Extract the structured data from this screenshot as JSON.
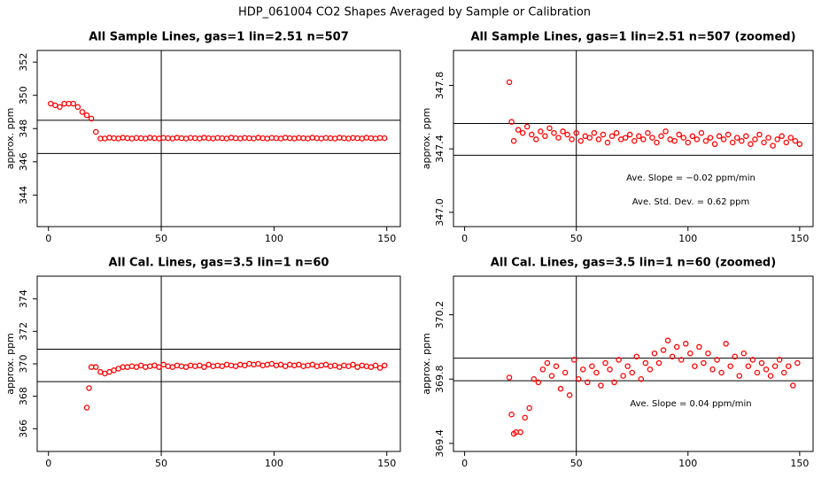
{
  "title": "HDP_061004  CO2 Shapes Averaged by Sample or Calibration",
  "chart_data": [
    {
      "type": "scatter",
      "title": "All Sample Lines, gas=1 lin=2.51 n=507",
      "ylabel": "approx. ppm",
      "color": "#ff0000",
      "xlim": [
        -5,
        156
      ],
      "ylim": [
        342.1,
        352.7
      ],
      "xticks": [
        0,
        50,
        100,
        150
      ],
      "yticks": [
        344,
        346,
        348,
        350,
        352
      ],
      "hlines": [
        348.5,
        346.5
      ],
      "vlines": [
        50
      ],
      "x": [
        1,
        3,
        5,
        7,
        9,
        11,
        13,
        15,
        17,
        19,
        21,
        23,
        25,
        27,
        29,
        31,
        33,
        35,
        37,
        39,
        41,
        43,
        45,
        47,
        49,
        51,
        53,
        55,
        57,
        59,
        61,
        63,
        65,
        67,
        69,
        71,
        73,
        75,
        77,
        79,
        81,
        83,
        85,
        87,
        89,
        91,
        93,
        95,
        97,
        99,
        101,
        103,
        105,
        107,
        109,
        111,
        113,
        115,
        117,
        119,
        121,
        123,
        125,
        127,
        129,
        131,
        133,
        135,
        137,
        139,
        141,
        143,
        145,
        147,
        149
      ],
      "values": [
        349.5,
        349.4,
        349.3,
        349.5,
        349.5,
        349.5,
        349.3,
        349.0,
        348.8,
        348.6,
        347.8,
        347.4,
        347.4,
        347.45,
        347.42,
        347.4,
        347.45,
        347.42,
        347.4,
        347.44,
        347.42,
        347.4,
        347.45,
        347.42,
        347.4,
        347.44,
        347.42,
        347.4,
        347.45,
        347.42,
        347.4,
        347.44,
        347.42,
        347.4,
        347.45,
        347.42,
        347.4,
        347.44,
        347.42,
        347.4,
        347.45,
        347.42,
        347.4,
        347.44,
        347.42,
        347.4,
        347.45,
        347.42,
        347.4,
        347.44,
        347.42,
        347.4,
        347.45,
        347.42,
        347.4,
        347.44,
        347.42,
        347.4,
        347.45,
        347.42,
        347.4,
        347.44,
        347.42,
        347.4,
        347.45,
        347.42,
        347.4,
        347.44,
        347.42,
        347.4,
        347.45,
        347.42,
        347.4,
        347.44,
        347.42
      ]
    },
    {
      "type": "scatter",
      "title": "All Sample Lines, gas=1 lin=2.51 n=507 (zoomed)",
      "ylabel": "approx. ppm",
      "color": "#ff0000",
      "xlim": [
        -5,
        156
      ],
      "ylim": [
        346.91,
        348.02
      ],
      "xticks": [
        0,
        50,
        100,
        150
      ],
      "yticks": [
        {
          "value": 347,
          "label": "347.0"
        },
        347.4,
        347.8
      ],
      "hlines": [
        347.56,
        347.36
      ],
      "vlines": [
        50
      ],
      "annotations": [
        "Ave. Slope = −0.02  ppm/min",
        "Ave. Std. Dev. = 0.62  ppm"
      ],
      "x": [
        20,
        21,
        22,
        24,
        26,
        28,
        30,
        32,
        34,
        36,
        38,
        40,
        42,
        44,
        46,
        48,
        50,
        52,
        54,
        56,
        58,
        60,
        62,
        64,
        66,
        68,
        70,
        72,
        74,
        76,
        78,
        80,
        82,
        84,
        86,
        88,
        90,
        92,
        94,
        96,
        98,
        100,
        102,
        104,
        106,
        108,
        110,
        112,
        114,
        116,
        118,
        120,
        122,
        124,
        126,
        128,
        130,
        132,
        134,
        136,
        138,
        140,
        142,
        144,
        146,
        148,
        150
      ],
      "values": [
        347.82,
        347.57,
        347.45,
        347.52,
        347.5,
        347.54,
        347.49,
        347.46,
        347.51,
        347.48,
        347.53,
        347.5,
        347.47,
        347.51,
        347.49,
        347.46,
        347.5,
        347.45,
        347.48,
        347.47,
        347.5,
        347.46,
        347.49,
        347.44,
        347.48,
        347.5,
        347.46,
        347.47,
        347.49,
        347.45,
        347.48,
        347.46,
        347.5,
        347.47,
        347.44,
        347.48,
        347.51,
        347.46,
        347.45,
        347.49,
        347.47,
        347.44,
        347.48,
        347.46,
        347.5,
        347.45,
        347.47,
        347.43,
        347.48,
        347.46,
        347.49,
        347.44,
        347.47,
        347.45,
        347.48,
        347.43,
        347.46,
        347.49,
        347.44,
        347.47,
        347.42,
        347.46,
        347.48,
        347.44,
        347.47,
        347.45,
        347.43
      ]
    },
    {
      "type": "scatter",
      "title": "All Cal. Lines, gas=3.5 lin=1 n=60",
      "ylabel": "approx. ppm",
      "color": "#ff0000",
      "xlim": [
        -5,
        156
      ],
      "ylim": [
        364.6,
        375.4
      ],
      "xticks": [
        0,
        50,
        100,
        150
      ],
      "yticks": [
        366,
        368,
        370,
        372,
        374
      ],
      "hlines": [
        370.9,
        368.9
      ],
      "vlines": [
        50
      ],
      "x": [
        17,
        18,
        19,
        21,
        23,
        25,
        27,
        29,
        31,
        33,
        35,
        37,
        39,
        41,
        43,
        45,
        47,
        49,
        51,
        53,
        55,
        57,
        59,
        61,
        63,
        65,
        67,
        69,
        71,
        73,
        75,
        77,
        79,
        81,
        83,
        85,
        87,
        89,
        91,
        93,
        95,
        97,
        99,
        101,
        103,
        105,
        107,
        109,
        111,
        113,
        115,
        117,
        119,
        121,
        123,
        125,
        127,
        129,
        131,
        133,
        135,
        137,
        139,
        141,
        143,
        145,
        147,
        149
      ],
      "values": [
        367.3,
        368.5,
        369.8,
        369.8,
        369.5,
        369.4,
        369.5,
        369.6,
        369.7,
        369.8,
        369.8,
        369.85,
        369.8,
        369.9,
        369.8,
        369.85,
        369.9,
        369.8,
        369.95,
        369.85,
        369.8,
        369.9,
        369.85,
        369.8,
        369.9,
        369.85,
        369.9,
        369.8,
        369.95,
        369.85,
        369.9,
        369.85,
        369.95,
        369.9,
        369.85,
        369.95,
        369.9,
        370.0,
        369.95,
        370.0,
        369.9,
        369.95,
        370.0,
        369.9,
        369.95,
        369.85,
        369.95,
        369.9,
        369.95,
        369.85,
        369.9,
        369.95,
        369.85,
        369.9,
        369.95,
        369.85,
        369.9,
        369.8,
        369.9,
        369.85,
        369.95,
        369.8,
        369.9,
        369.85,
        369.8,
        369.9,
        369.75,
        369.9
      ]
    },
    {
      "type": "scatter",
      "title": "All Cal. Lines, gas=3.5 lin=1 n=60 (zoomed)",
      "ylabel": "approx. ppm",
      "color": "#ff0000",
      "xlim": [
        -5,
        156
      ],
      "ylim": [
        369.35,
        370.44
      ],
      "xticks": [
        0,
        50,
        100,
        150
      ],
      "yticks": [
        369.4,
        369.8,
        370.2
      ],
      "hlines": [
        369.93,
        369.79
      ],
      "vlines": [
        50
      ],
      "annotations": [
        "Ave. Slope =  0.04  ppm/min"
      ],
      "x": [
        20,
        21,
        22,
        23,
        25,
        27,
        29,
        31,
        33,
        35,
        37,
        39,
        41,
        43,
        45,
        47,
        49,
        51,
        53,
        55,
        57,
        59,
        61,
        63,
        65,
        67,
        69,
        71,
        73,
        75,
        77,
        79,
        81,
        83,
        85,
        87,
        89,
        91,
        93,
        95,
        97,
        99,
        101,
        103,
        105,
        107,
        109,
        111,
        113,
        115,
        117,
        119,
        121,
        123,
        125,
        127,
        129,
        131,
        133,
        135,
        137,
        139,
        141,
        143,
        145,
        147,
        149
      ],
      "values": [
        369.81,
        369.58,
        369.46,
        369.47,
        369.47,
        369.56,
        369.62,
        369.8,
        369.78,
        369.86,
        369.9,
        369.82,
        369.88,
        369.74,
        369.84,
        369.7,
        369.92,
        369.8,
        369.86,
        369.78,
        369.88,
        369.84,
        369.76,
        369.9,
        369.86,
        369.78,
        369.92,
        369.82,
        369.88,
        369.84,
        369.94,
        369.8,
        369.9,
        369.86,
        369.96,
        369.9,
        369.98,
        370.04,
        369.94,
        370.0,
        369.92,
        370.02,
        369.96,
        369.88,
        370.0,
        369.9,
        369.96,
        369.86,
        369.92,
        369.84,
        370.02,
        369.88,
        369.94,
        369.82,
        369.96,
        369.88,
        369.92,
        369.84,
        369.9,
        369.86,
        369.82,
        369.88,
        369.92,
        369.84,
        369.88,
        369.76,
        369.9
      ]
    }
  ]
}
